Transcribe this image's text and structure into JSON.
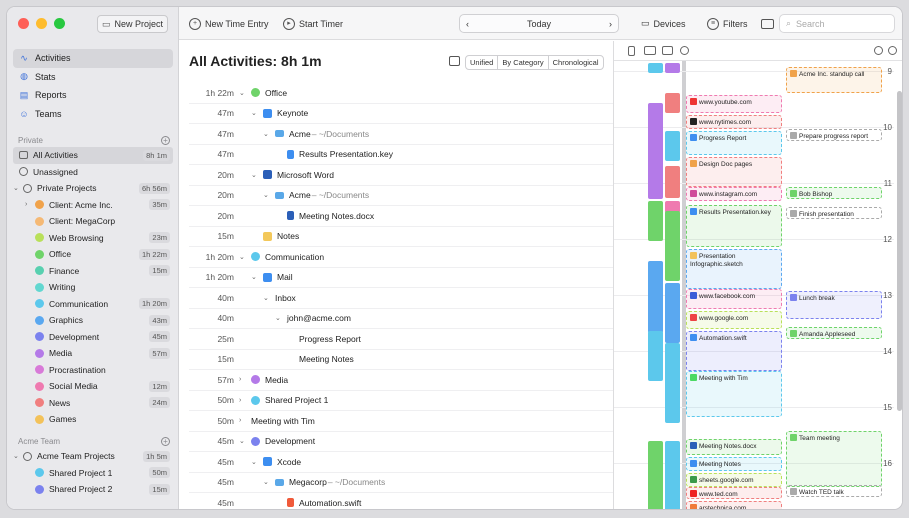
{
  "sidebar": {
    "new_project": "New Project",
    "nav": [
      "Activities",
      "Stats",
      "Reports",
      "Teams"
    ],
    "private_label": "Private",
    "private_items": [
      {
        "label": "All Activities",
        "time": "8h 1m"
      },
      {
        "label": "Unassigned",
        "time": ""
      }
    ],
    "private_projects": {
      "label": "Private Projects",
      "time": "6h 56m"
    },
    "projects": [
      {
        "label": "Client: Acme Inc.",
        "time": "35m",
        "color": "#f0a24a"
      },
      {
        "label": "Client: MegaCorp",
        "time": "",
        "color": "#f5b975"
      },
      {
        "label": "Web Browsing",
        "time": "23m",
        "color": "#b9e05a"
      },
      {
        "label": "Office",
        "time": "1h 22m",
        "color": "#6fd36a"
      },
      {
        "label": "Finance",
        "time": "15m",
        "color": "#58d0b0"
      },
      {
        "label": "Writing",
        "time": "",
        "color": "#62d7d0"
      },
      {
        "label": "Communication",
        "time": "1h 20m",
        "color": "#5cc8ec"
      },
      {
        "label": "Graphics",
        "time": "43m",
        "color": "#5aa8f0"
      },
      {
        "label": "Development",
        "time": "45m",
        "color": "#7b82ee"
      },
      {
        "label": "Media",
        "time": "57m",
        "color": "#b47ae8"
      },
      {
        "label": "Procrastination",
        "time": "",
        "color": "#d87ad8"
      },
      {
        "label": "Social Media",
        "time": "12m",
        "color": "#ef7ab0"
      },
      {
        "label": "News",
        "time": "24m",
        "color": "#f07f7f"
      },
      {
        "label": "Games",
        "time": "",
        "color": "#f3c25a"
      }
    ],
    "team_label": "Acme Team",
    "team_projects": {
      "label": "Acme Team Projects",
      "time": "1h 5m"
    },
    "team_items": [
      {
        "label": "Shared Project 1",
        "time": "50m",
        "color": "#5cc8ec"
      },
      {
        "label": "Shared Project 2",
        "time": "15m",
        "color": "#7b82ee"
      }
    ]
  },
  "toolbar": {
    "new_time_entry": "New Time Entry",
    "start_timer": "Start Timer",
    "today": "Today",
    "devices": "Devices",
    "filters": "Filters",
    "search_placeholder": "Search"
  },
  "main": {
    "title": "All Activities: 8h 1m",
    "segments": [
      "Unified",
      "By Category",
      "Chronological"
    ],
    "rows": [
      {
        "dur": "1h 22m",
        "label": "Office",
        "indent": 0,
        "chev": "v",
        "icon": "dot",
        "color": "#6fd36a"
      },
      {
        "dur": "47m",
        "label": "Keynote",
        "indent": 1,
        "chev": "v",
        "icon": "app",
        "color": "#3d8ef0"
      },
      {
        "dur": "47m",
        "label": "Acme",
        "suffix": " – ~/Documents",
        "indent": 2,
        "chev": "v",
        "icon": "folder",
        "color": "#5aa8e8"
      },
      {
        "dur": "47m",
        "label": "Results Presentation.key",
        "indent": 3,
        "chev": "",
        "icon": "file",
        "color": "#3d8ef0"
      },
      {
        "dur": "20m",
        "label": "Microsoft Word",
        "indent": 1,
        "chev": "v",
        "icon": "app",
        "color": "#2b5fb8"
      },
      {
        "dur": "20m",
        "label": "Acme",
        "suffix": " – ~/Documents",
        "indent": 2,
        "chev": "v",
        "icon": "folder",
        "color": "#5aa8e8"
      },
      {
        "dur": "20m",
        "label": "Meeting Notes.docx",
        "indent": 3,
        "chev": "",
        "icon": "file",
        "color": "#2b5fb8"
      },
      {
        "dur": "15m",
        "label": "Notes",
        "indent": 1,
        "chev": "",
        "icon": "app",
        "color": "#f3c85a"
      },
      {
        "dur": "1h 20m",
        "label": "Communication",
        "indent": 0,
        "chev": "v",
        "icon": "dot",
        "color": "#5cc8ec"
      },
      {
        "dur": "1h 20m",
        "label": "Mail",
        "indent": 1,
        "chev": "v",
        "icon": "app",
        "color": "#3d8ef0"
      },
      {
        "dur": "40m",
        "label": "Inbox",
        "indent": 2,
        "chev": "v",
        "icon": "",
        "color": ""
      },
      {
        "dur": "40m",
        "label": "john@acme.com",
        "indent": 3,
        "chev": "v",
        "icon": "",
        "color": ""
      },
      {
        "dur": "25m",
        "label": "Progress Report",
        "indent": 4,
        "chev": "",
        "icon": "",
        "color": ""
      },
      {
        "dur": "15m",
        "label": "Meeting Notes",
        "indent": 4,
        "chev": "",
        "icon": "",
        "color": ""
      },
      {
        "dur": "57m",
        "label": "Media",
        "indent": 0,
        "chev": ">",
        "icon": "dot",
        "color": "#b47ae8"
      },
      {
        "dur": "50m",
        "label": "Shared Project 1",
        "indent": 0,
        "chev": ">",
        "icon": "dot",
        "color": "#5cc8ec"
      },
      {
        "dur": "50m",
        "label": "Meeting with Tim",
        "indent": 0,
        "chev": ">",
        "icon": "",
        "color": ""
      },
      {
        "dur": "45m",
        "label": "Development",
        "indent": 0,
        "chev": "v",
        "icon": "dot",
        "color": "#7b82ee"
      },
      {
        "dur": "45m",
        "label": "Xcode",
        "indent": 1,
        "chev": "v",
        "icon": "app",
        "color": "#3d8ef0"
      },
      {
        "dur": "45m",
        "label": "Megacorp",
        "suffix": " – ~/Documents",
        "indent": 2,
        "chev": "v",
        "icon": "folder",
        "color": "#5aa8e8"
      },
      {
        "dur": "45m",
        "label": "Automation.swift",
        "indent": 3,
        "chev": "",
        "icon": "file",
        "color": "#f05a3a"
      }
    ]
  },
  "timeline": {
    "hours": [
      "9",
      "10",
      "11",
      "12",
      "13",
      "14",
      "15",
      "16"
    ],
    "events_left": [
      {
        "label": "www.youtube.com",
        "color": "#ef7ab0",
        "icon": "#e33"
      },
      {
        "label": "www.nytimes.com",
        "color": "#f07f7f",
        "icon": "#222"
      },
      {
        "label": "Progress Report",
        "color": "#5cc8ec",
        "icon": "#3d8ef0"
      },
      {
        "label": "Design Doc pages",
        "color": "#f07f7f",
        "icon": "#f0a24a"
      },
      {
        "label": "www.instagram.com",
        "color": "#ef7ab0",
        "icon": "#d04a9a"
      },
      {
        "label": "Results Presentation.key",
        "color": "#6fd36a",
        "icon": "#3d8ef0"
      },
      {
        "label": "Presentation Infographic.sketch",
        "color": "#5aa8f0",
        "icon": "#f3c25a"
      },
      {
        "label": "www.facebook.com",
        "color": "#ef7ab0",
        "icon": "#3b5bd8"
      },
      {
        "label": "www.google.com",
        "color": "#b9e05a",
        "icon": "#e44"
      },
      {
        "label": "Automation.swift",
        "color": "#7b82ee",
        "icon": "#3d8ef0"
      },
      {
        "label": "Meeting with Tim",
        "color": "#5cc8ec",
        "icon": "#4cd964"
      },
      {
        "label": "Meeting Notes.docx",
        "color": "#6fd36a",
        "icon": "#2b5fb8"
      },
      {
        "label": "Meeting Notes",
        "color": "#5cc8ec",
        "icon": "#3d8ef0"
      },
      {
        "label": "sheets.google.com",
        "color": "#b9e05a",
        "icon": "#3a9a4a"
      },
      {
        "label": "www.ted.com",
        "color": "#f07f7f",
        "icon": "#e22"
      },
      {
        "label": "arstechnica.com",
        "color": "#f07f7f",
        "icon": "#f07a3a"
      }
    ],
    "events_right": [
      {
        "label": "Acme Inc. standup call",
        "color": "#f0a24a"
      },
      {
        "label": "Prepare progress report",
        "color": "#aaa"
      },
      {
        "label": "Bob Bishop",
        "color": "#6fd36a"
      },
      {
        "label": "Finish presentation",
        "color": "#aaa"
      },
      {
        "label": "Lunch break",
        "color": "#7b82ee"
      },
      {
        "label": "Amanda Appleseed",
        "color": "#6fd36a"
      },
      {
        "label": "Team meeting",
        "color": "#6fd36a"
      },
      {
        "label": "Watch TED talk",
        "color": "#aaa"
      }
    ]
  }
}
